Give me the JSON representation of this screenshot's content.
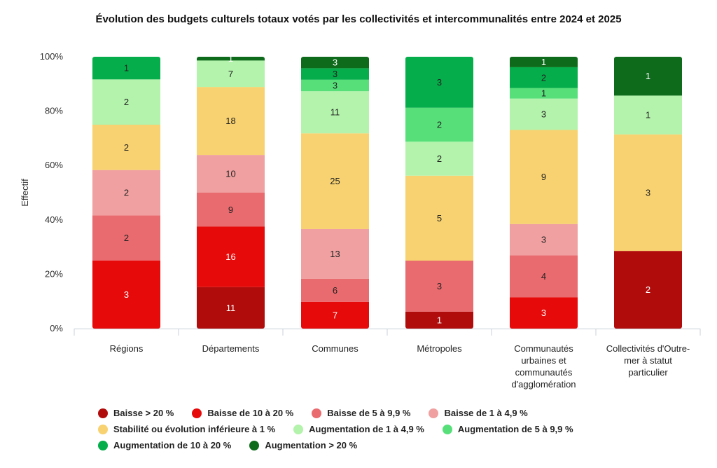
{
  "chart_data": {
    "type": "bar",
    "stacked": true,
    "normalized_percent": true,
    "title": "Évolution des budgets culturels totaux votés par les collectivités et intercommunalités entre 2024 et 2025",
    "ylabel": "Effectif",
    "xlabel": "",
    "y_ticks": [
      "0%",
      "20%",
      "40%",
      "60%",
      "80%",
      "100%"
    ],
    "ylim": [
      0,
      100
    ],
    "grid": false,
    "legend_position": "bottom",
    "categories": [
      [
        "Régions"
      ],
      [
        "Départements"
      ],
      [
        "Communes"
      ],
      [
        "Métropoles"
      ],
      [
        "Communautés",
        "urbaines et",
        "communautés",
        "d'agglomération"
      ],
      [
        "Collectivités d'Outre-",
        "mer à statut",
        "particulier"
      ]
    ],
    "series": [
      {
        "name": "Baisse > 20 %",
        "color": "#b10c0c",
        "label_color": "#ffffff",
        "values": [
          0,
          11,
          0,
          1,
          0,
          2
        ]
      },
      {
        "name": "Baisse de 10 à 20 %",
        "color": "#e60a0a",
        "label_color": "#ffffff",
        "values": [
          3,
          16,
          7,
          0,
          3,
          0
        ]
      },
      {
        "name": "Baisse de 5 à 9,9 %",
        "color": "#ea6b6f",
        "label_color": "#222222",
        "values": [
          2,
          9,
          6,
          3,
          4,
          0
        ]
      },
      {
        "name": "Baisse de 1 à 4,9 %",
        "color": "#f0a0a0",
        "label_color": "#222222",
        "values": [
          2,
          10,
          13,
          0,
          3,
          0
        ]
      },
      {
        "name": "Stabilité ou évolution inférieure à 1 %",
        "color": "#f8d270",
        "label_color": "#222222",
        "values": [
          2,
          18,
          25,
          5,
          9,
          3
        ]
      },
      {
        "name": "Augmentation de 1 à 4,9 %",
        "color": "#b3f3ab",
        "label_color": "#222222",
        "values": [
          2,
          7,
          11,
          2,
          3,
          1
        ]
      },
      {
        "name": "Augmentation de 5 à 9,9 %",
        "color": "#57e07a",
        "label_color": "#222222",
        "values": [
          0,
          0,
          3,
          2,
          1,
          0
        ]
      },
      {
        "name": "Augmentation de 10 à 20 %",
        "color": "#05ae4a",
        "label_color": "#222222",
        "values": [
          1,
          0,
          3,
          3,
          2,
          0
        ]
      },
      {
        "name": "Augmentation > 20 %",
        "color": "#0f6b1c",
        "label_color": "#ffffff",
        "values": [
          0,
          1,
          3,
          0,
          1,
          1
        ]
      }
    ]
  },
  "legend_rows": [
    [
      0,
      1,
      2,
      3
    ],
    [
      4,
      5,
      6
    ],
    [
      7,
      8
    ]
  ]
}
